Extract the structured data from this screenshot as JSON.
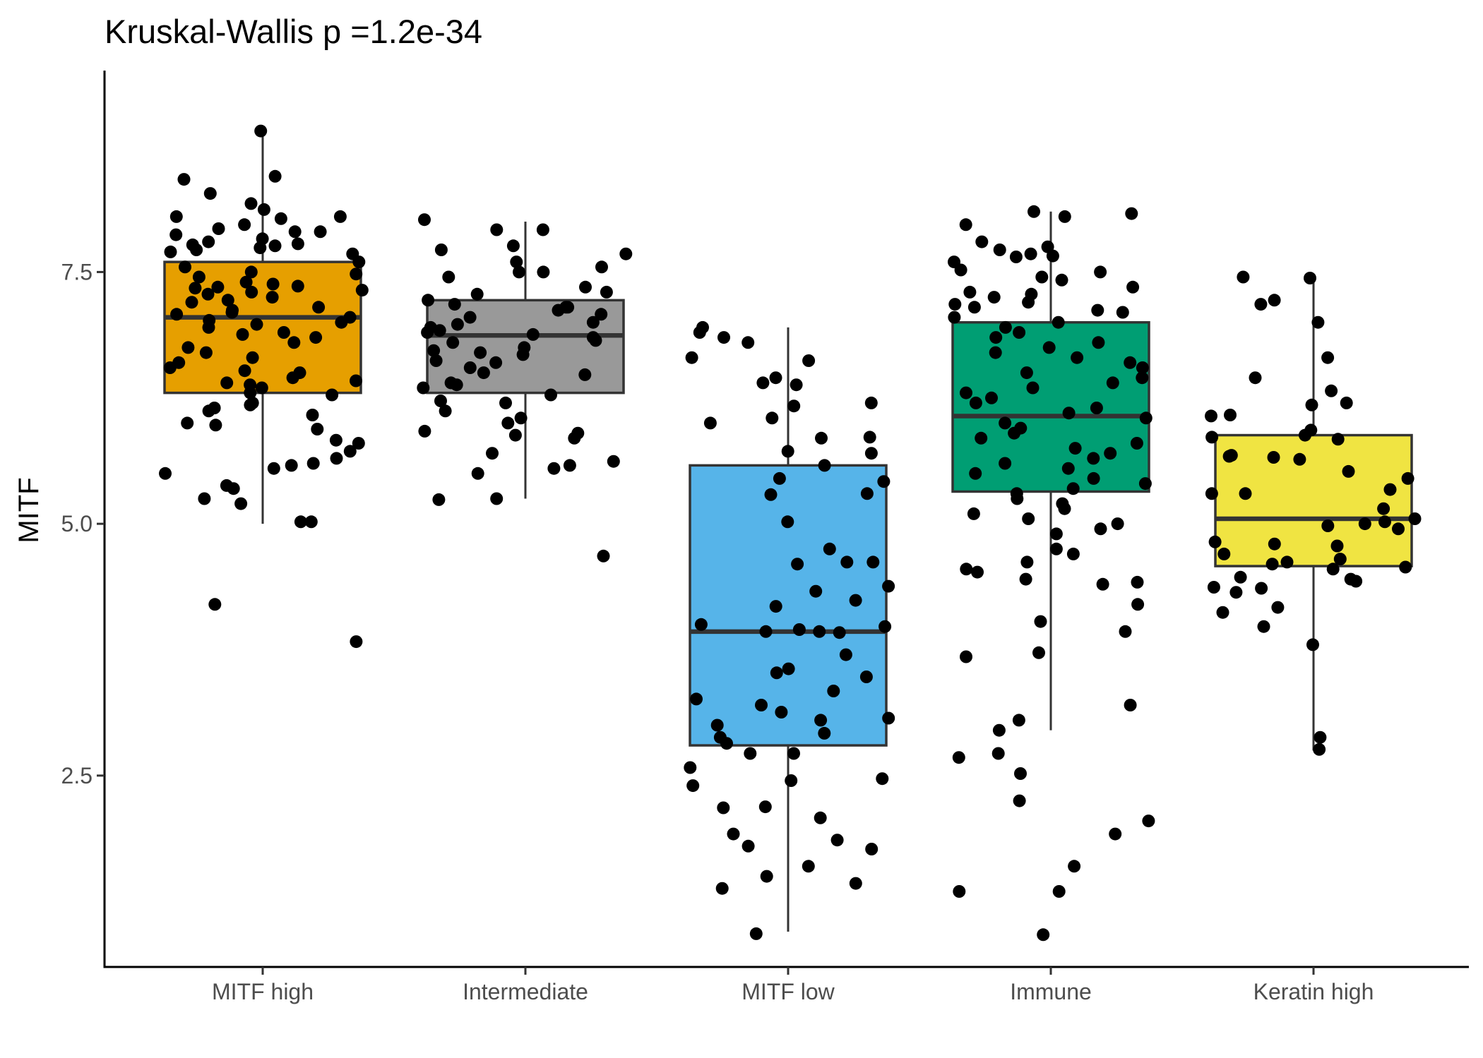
{
  "chart_data": {
    "type": "box",
    "title": "Kruskal-Wallis p =1.2e-34",
    "xlabel": "",
    "ylabel": "MITF",
    "ylim": [
      0.6,
      9.5
    ],
    "yticks": [
      2.5,
      5.0,
      7.5
    ],
    "ytick_labels": [
      "2.5",
      "5.0",
      "7.5"
    ],
    "grid": false,
    "legend": "none",
    "categories": [
      "MITF high",
      "Intermediate",
      "MITF low",
      "Immune",
      "Keratin high"
    ],
    "colors": [
      "#E69F00",
      "#999999",
      "#56B4E9",
      "#009E73",
      "#F0E442"
    ],
    "boxes": [
      {
        "category": "MITF high",
        "whisker_low": 5.0,
        "q1": 6.3,
        "median": 7.05,
        "q3": 7.6,
        "whisker_high": 8.9
      },
      {
        "category": "Intermediate",
        "whisker_low": 5.25,
        "q1": 6.3,
        "median": 6.87,
        "q3": 7.22,
        "whisker_high": 8.0
      },
      {
        "category": "MITF low",
        "whisker_low": 0.95,
        "q1": 2.8,
        "median": 3.93,
        "q3": 5.58,
        "whisker_high": 6.95
      },
      {
        "category": "Immune",
        "whisker_low": 2.95,
        "q1": 5.32,
        "median": 6.07,
        "q3": 7.0,
        "whisker_high": 8.1
      },
      {
        "category": "Keratin high",
        "whisker_low": 2.75,
        "q1": 4.58,
        "median": 5.05,
        "q3": 5.88,
        "whisker_high": 7.45
      }
    ],
    "points": [
      {
        "category": "MITF high",
        "values": [
          8.9,
          8.45,
          8.42,
          8.28,
          8.18,
          8.12,
          8.05,
          8.05,
          8.03,
          7.97,
          7.93,
          7.9,
          7.9,
          7.87,
          7.83,
          7.8,
          7.78,
          7.77,
          7.76,
          7.74,
          7.72,
          7.7,
          7.68,
          7.6,
          7.55,
          7.5,
          7.48,
          7.45,
          7.4,
          7.38,
          7.36,
          7.35,
          7.34,
          7.32,
          7.3,
          7.28,
          7.25,
          7.22,
          7.2,
          7.15,
          7.12,
          7.1,
          7.08,
          7.05,
          7.02,
          7.0,
          6.98,
          6.95,
          6.9,
          6.88,
          6.85,
          6.8,
          6.75,
          6.7,
          6.65,
          6.6,
          6.55,
          6.52,
          6.5,
          6.45,
          6.42,
          6.4,
          6.38,
          6.35,
          6.3,
          6.28,
          6.2,
          6.18,
          6.15,
          6.12,
          6.08,
          6.0,
          5.98,
          5.94,
          5.83,
          5.8,
          5.72,
          5.65,
          5.6,
          5.58,
          5.55,
          5.5,
          5.38,
          5.35,
          5.25,
          5.2,
          5.02,
          5.02,
          4.2,
          3.83
        ]
      },
      {
        "category": "Intermediate",
        "values": [
          8.02,
          7.92,
          7.92,
          7.76,
          7.72,
          7.68,
          7.6,
          7.55,
          7.5,
          7.5,
          7.45,
          7.35,
          7.3,
          7.28,
          7.22,
          7.18,
          7.15,
          7.15,
          7.12,
          7.08,
          7.05,
          7.0,
          6.98,
          6.95,
          6.92,
          6.9,
          6.88,
          6.85,
          6.82,
          6.8,
          6.75,
          6.72,
          6.7,
          6.68,
          6.62,
          6.6,
          6.55,
          6.5,
          6.48,
          6.4,
          6.38,
          6.35,
          6.28,
          6.22,
          6.2,
          6.12,
          6.05,
          6.0,
          5.92,
          5.9,
          5.88,
          5.85,
          5.7,
          5.62,
          5.58,
          5.55,
          5.5,
          5.25,
          5.24,
          4.68
        ]
      },
      {
        "category": "MITF low",
        "values": [
          6.95,
          6.9,
          6.85,
          6.8,
          6.65,
          6.62,
          6.45,
          6.4,
          6.38,
          6.2,
          6.17,
          6.05,
          6.0,
          5.86,
          5.85,
          5.72,
          5.7,
          5.58,
          5.45,
          5.42,
          5.3,
          5.29,
          5.02,
          4.75,
          4.62,
          4.62,
          4.6,
          4.38,
          4.33,
          4.24,
          4.18,
          4.0,
          3.98,
          3.95,
          3.93,
          3.93,
          3.92,
          3.7,
          3.56,
          3.52,
          3.48,
          3.34,
          3.26,
          3.2,
          3.13,
          3.07,
          3.05,
          3.0,
          2.92,
          2.88,
          2.82,
          2.72,
          2.72,
          2.58,
          2.47,
          2.45,
          2.4,
          2.19,
          2.18,
          2.08,
          1.92,
          1.86,
          1.8,
          1.77,
          1.6,
          1.5,
          1.43,
          1.38,
          0.93
        ]
      },
      {
        "category": "Immune",
        "values": [
          8.1,
          8.08,
          8.05,
          7.97,
          7.8,
          7.75,
          7.72,
          7.68,
          7.66,
          7.65,
          7.6,
          7.52,
          7.5,
          7.45,
          7.42,
          7.35,
          7.3,
          7.28,
          7.25,
          7.2,
          7.18,
          7.15,
          7.12,
          7.1,
          7.05,
          7.0,
          6.95,
          6.9,
          6.85,
          6.8,
          6.75,
          6.7,
          6.65,
          6.6,
          6.55,
          6.5,
          6.45,
          6.4,
          6.35,
          6.3,
          6.25,
          6.2,
          6.15,
          6.1,
          6.05,
          6.0,
          5.95,
          5.9,
          5.85,
          5.8,
          5.75,
          5.7,
          5.65,
          5.6,
          5.55,
          5.5,
          5.45,
          5.4,
          5.35,
          5.3,
          5.25,
          5.2,
          5.15,
          5.1,
          5.05,
          5.0,
          4.95,
          4.9,
          4.75,
          4.7,
          4.62,
          4.55,
          4.52,
          4.45,
          4.42,
          4.4,
          4.2,
          4.03,
          3.93,
          3.72,
          3.68,
          3.2,
          3.05,
          2.95,
          2.72,
          2.68,
          2.52,
          2.25,
          2.05,
          1.92,
          1.6,
          1.35,
          1.35,
          0.92
        ]
      },
      {
        "category": "Keratin high",
        "values": [
          7.45,
          7.44,
          7.22,
          7.18,
          7.0,
          6.65,
          6.45,
          6.32,
          6.2,
          6.18,
          6.08,
          6.07,
          5.93,
          5.88,
          5.86,
          5.84,
          5.68,
          5.67,
          5.66,
          5.64,
          5.52,
          5.45,
          5.34,
          5.3,
          5.3,
          5.15,
          5.05,
          5.02,
          5.0,
          4.98,
          4.95,
          4.82,
          4.8,
          4.78,
          4.7,
          4.65,
          4.62,
          4.6,
          4.57,
          4.55,
          4.47,
          4.45,
          4.43,
          4.37,
          4.36,
          4.32,
          4.17,
          4.12,
          3.98,
          3.8,
          2.88,
          2.76
        ]
      }
    ]
  }
}
